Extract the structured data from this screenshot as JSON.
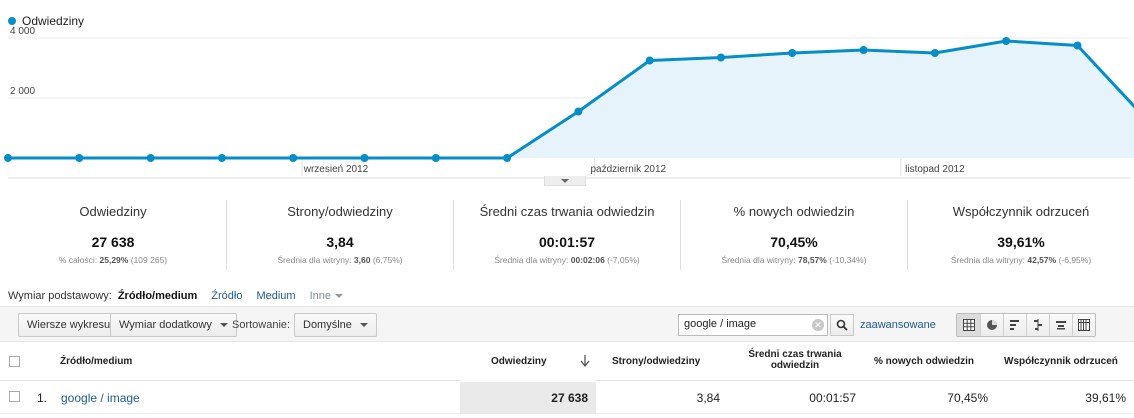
{
  "chart": {
    "legend_label": "Odwiedziny",
    "series_color": "#058dc7",
    "fill_color": "#e6f3fa",
    "y_ticks": [
      "4 000",
      "2 000"
    ],
    "y_tick_values": [
      4000,
      2000
    ],
    "ymax": 4750,
    "x_labels": [
      "wrzesień 2012",
      "październik 2012",
      "listopad 2012"
    ],
    "x_label_indexes": [
      4.6,
      8.7,
      13.0
    ]
  },
  "chart_data": {
    "type": "area",
    "series": [
      {
        "name": "Odwiedziny",
        "values": [
          0,
          0,
          0,
          0,
          0,
          0,
          0,
          0,
          1550,
          3250,
          3350,
          3500,
          3600,
          3500,
          3900,
          3750,
          1200
        ]
      }
    ],
    "ylim": [
      0,
      4750
    ],
    "grid": true,
    "legend": "top-left"
  },
  "scorecards": [
    {
      "label": "Odwiedziny",
      "value": "27 638",
      "sub_prefix": "% całości:",
      "sub_bold": "25,29%",
      "sub_suffix": "(109 265)"
    },
    {
      "label": "Strony/odwiedziny",
      "value": "3,84",
      "sub_prefix": "Średnia dla witryny:",
      "sub_bold": "3,60",
      "sub_suffix": "(6,75%)"
    },
    {
      "label": "Średni czas trwania odwiedzin",
      "value": "00:01:57",
      "sub_prefix": "Średnia dla witryny:",
      "sub_bold": "00:02:06",
      "sub_suffix": "(-7,05%)"
    },
    {
      "label": "% nowych odwiedzin",
      "value": "70,45%",
      "sub_prefix": "Średnia dla witryny:",
      "sub_bold": "78,57%",
      "sub_suffix": "(-10,34%)"
    },
    {
      "label": "Współczynnik odrzuceń",
      "value": "39,61%",
      "sub_prefix": "Średnia dla witryny:",
      "sub_bold": "42,57%",
      "sub_suffix": "(-6,95%)"
    }
  ],
  "dimension": {
    "label": "Wymiar podstawowy:",
    "active": "Źródło/medium",
    "options": [
      "Źródło",
      "Medium"
    ],
    "more": "Inne"
  },
  "toolbar": {
    "plot_rows": "Wiersze wykresu",
    "secondary_dimension": "Wymiar dodatkowy",
    "sort_label": "Sortowanie:",
    "sort_value": "Domyślne",
    "search_value": "google / image",
    "advanced": "zaawansowane",
    "view_icons": [
      "table-view-icon",
      "pie-view-icon",
      "performance-view-icon",
      "comparison-view-icon",
      "term-cloud-view-icon",
      "pivot-view-icon"
    ]
  },
  "table": {
    "headers": {
      "dimension": "Źródło/medium",
      "visits": "Odwiedziny",
      "pages": "Strony/odwiedziny",
      "duration_line1": "Średni czas trwania",
      "duration_line2": "odwiedzin",
      "new_visits": "% nowych odwiedzin",
      "bounce": "Współczynnik odrzuceń"
    },
    "rows": [
      {
        "index": "1.",
        "dimension": "google / image",
        "visits": "27 638",
        "pages": "3,84",
        "duration": "00:01:57",
        "new_visits": "70,45%",
        "bounce": "39,61%"
      }
    ]
  }
}
